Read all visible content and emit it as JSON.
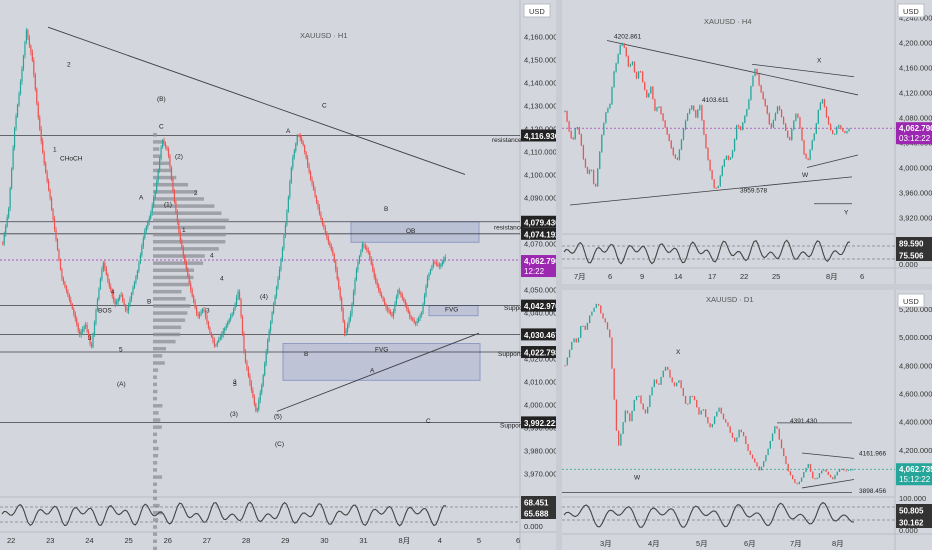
{
  "colors": {
    "bg": "#d3d6dc",
    "up": "#26a69a",
    "down": "#ef5350",
    "line": "#3c3f47",
    "zone": "#8f9bc7",
    "price_h1": "#9c27b0",
    "price_d1": "#26a69a",
    "label_dark": "#222222"
  },
  "h1": {
    "title": "XAUUSD · H1",
    "currency": "USD",
    "y_ticks": [
      "4,160.000",
      "4,150.000",
      "4,140.000",
      "4,130.000",
      "4,120.000",
      "4,110.000",
      "4,100.000",
      "4,090.000",
      "4,080.000",
      "4,070.000",
      "4,060.000",
      "4,050.000",
      "4,040.000",
      "4,030.000",
      "4,020.000",
      "4,010.000",
      "4,000.000",
      "3,990.000",
      "3,980.000",
      "3,970.000"
    ],
    "x_ticks": [
      "22",
      "23",
      "24",
      "25",
      "26",
      "27",
      "28",
      "29",
      "30",
      "31",
      "8月",
      "4",
      "5",
      "6"
    ],
    "price_labels": [
      {
        "value": "4,116.936",
        "type": "dark"
      },
      {
        "value": "4,079.430",
        "type": "dark"
      },
      {
        "value": "4,074.192",
        "type": "dark"
      },
      {
        "value": "4,062.790",
        "sub": "12:22",
        "type": "current"
      },
      {
        "value": "4,042.970",
        "type": "dark"
      },
      {
        "value": "4,030.467",
        "type": "dark"
      },
      {
        "value": "4,022.798",
        "type": "dark"
      },
      {
        "value": "3,992.221",
        "type": "dark"
      }
    ],
    "osc_labels": [
      "68.451",
      "65.688",
      "0.000"
    ],
    "annotations": [
      "resistance",
      "resistance",
      "Support",
      "Support",
      "Support",
      "OB",
      "FVG",
      "FVG",
      "CHoCH",
      "BOS",
      "(B)",
      "C",
      "(2)",
      "(1)",
      "A",
      "B",
      "2",
      "1",
      "(A)",
      "3",
      "4",
      "5",
      "3",
      "4",
      "(4)",
      "(3)",
      "(5)",
      "(C)",
      "A",
      "C",
      "B",
      "B",
      "A",
      "C",
      "1",
      "2",
      "3",
      "4",
      "5"
    ]
  },
  "h4": {
    "title": "XAUUSD · H4",
    "currency": "USD",
    "y_ticks": [
      "4,240.000",
      "4,200.000",
      "4,160.000",
      "4,120.000",
      "4,080.000",
      "4,040.000",
      "4,000.000",
      "3,960.000",
      "3,920.000"
    ],
    "x_ticks": [
      "7月",
      "6",
      "9",
      "14",
      "17",
      "22",
      "25",
      "8月",
      "6"
    ],
    "price_label": {
      "value": "4,062.790",
      "sub": "03:12:22"
    },
    "osc_labels": [
      "89.590",
      "75.506",
      "0.000"
    ],
    "annotations": [
      "4202.861",
      "4103.611",
      "3959.578",
      "X",
      "W",
      "Y"
    ]
  },
  "d1": {
    "title": "XAUUSD · D1",
    "currency": "USD",
    "y_ticks": [
      "5,200.000",
      "5,000.000",
      "4,800.000",
      "4,600.000",
      "4,400.000",
      "4,200.000",
      "3,980.000"
    ],
    "x_ticks": [
      "3月",
      "4月",
      "5月",
      "6月",
      "7月",
      "8月"
    ],
    "price_label": {
      "value": "4,062.735",
      "sub": "15:12:22"
    },
    "osc_labels": [
      "100.000",
      "50.805",
      "30.162",
      "0.000"
    ],
    "annotations": [
      "4391.430",
      "4161.966",
      "3898.456",
      "X",
      "W"
    ]
  },
  "chart_data": [
    {
      "type": "candlestick",
      "title": "XAUUSD · H1",
      "ylabel": "USD",
      "ylim": [
        3965,
        4168
      ],
      "categories": [
        "22",
        "23",
        "24",
        "25",
        "26",
        "27",
        "28",
        "29",
        "30",
        "31",
        "8月",
        "4",
        "5",
        "6"
      ],
      "levels": [
        4116.936,
        4079.43,
        4074.192,
        4062.79,
        4042.97,
        4030.467,
        4022.798,
        3992.221
      ],
      "approx_close_path": [
        4070,
        4085,
        4120,
        4140,
        4163,
        4150,
        4125,
        4105,
        4090,
        4072,
        4055,
        4048,
        4040,
        4030,
        4035,
        4024,
        4045,
        4062,
        4052,
        4043,
        4048,
        4040,
        4050,
        4060,
        4075,
        4082,
        4095,
        4115,
        4110,
        4090,
        4072,
        4060,
        4048,
        4038,
        4042,
        4032,
        4025,
        4030,
        4035,
        4040,
        4050,
        4020,
        4008,
        3996,
        4010,
        4030,
        4045,
        4060,
        4080,
        4105,
        4118,
        4112,
        4100,
        4090,
        4080,
        4072,
        4065,
        4050,
        4030,
        4040,
        4060,
        4070,
        4066,
        4055,
        4048,
        4042,
        4038,
        4050,
        4045,
        4038,
        4035,
        4040,
        4055,
        4062,
        4060,
        4064
      ]
    },
    {
      "type": "candlestick",
      "title": "XAUUSD · H4",
      "ylabel": "USD",
      "ylim": [
        3900,
        4255
      ],
      "categories": [
        "7月",
        "6",
        "9",
        "14",
        "17",
        "22",
        "25",
        "8月",
        "6"
      ],
      "levels": [
        4202.861,
        4103.611,
        3959.578,
        4062.79
      ],
      "approx_close_path": [
        4090,
        4060,
        4040,
        4070,
        4050,
        4010,
        3990,
        4000,
        3960,
        4010,
        4060,
        4090,
        4100,
        4150,
        4175,
        4202,
        4190,
        4160,
        4170,
        4140,
        4160,
        4130,
        4110,
        4130,
        4090,
        4100,
        4080,
        4060,
        4040,
        4020,
        4010,
        4040,
        4070,
        4090,
        4100,
        4080,
        4103,
        4060,
        4020,
        3990,
        3965,
        3970,
        4000,
        4020,
        4010,
        4030,
        4070,
        4060,
        4080,
        4100,
        4140,
        4160,
        4130,
        4110,
        4090,
        4060,
        4080,
        4100,
        4080,
        4060,
        4040,
        4070,
        4090,
        4060,
        4020,
        4010,
        4040,
        4060,
        4100,
        4110,
        4080,
        4060,
        4050,
        4070,
        4060,
        4055,
        4062
      ]
    },
    {
      "type": "candlestick",
      "title": "XAUUSD · D1",
      "ylabel": "USD",
      "ylim": [
        3880,
        5320
      ],
      "categories": [
        "3月",
        "4月",
        "5月",
        "6月",
        "7月",
        "8月"
      ],
      "levels": [
        4391.43,
        4161.966,
        3898.456,
        4062.735
      ],
      "approx_close_path": [
        4800,
        4900,
        5000,
        4950,
        5100,
        5050,
        5150,
        5200,
        5250,
        5150,
        5100,
        5000,
        4600,
        4200,
        4350,
        4500,
        4400,
        4550,
        4600,
        4500,
        4450,
        4600,
        4700,
        4650,
        4750,
        4800,
        4700,
        4650,
        4700,
        4600,
        4500,
        4600,
        4550,
        4450,
        4500,
        4400,
        4350,
        4450,
        4500,
        4420,
        4380,
        4300,
        4250,
        4350,
        4300,
        4200,
        4150,
        4100,
        4050,
        4120,
        4200,
        4300,
        4391,
        4250,
        4150,
        4050,
        4000,
        3950,
        3980,
        4050,
        4100,
        4000,
        3990,
        4050,
        4060,
        4020,
        3990,
        4040,
        4070,
        4050,
        4060,
        4062
      ]
    }
  ]
}
